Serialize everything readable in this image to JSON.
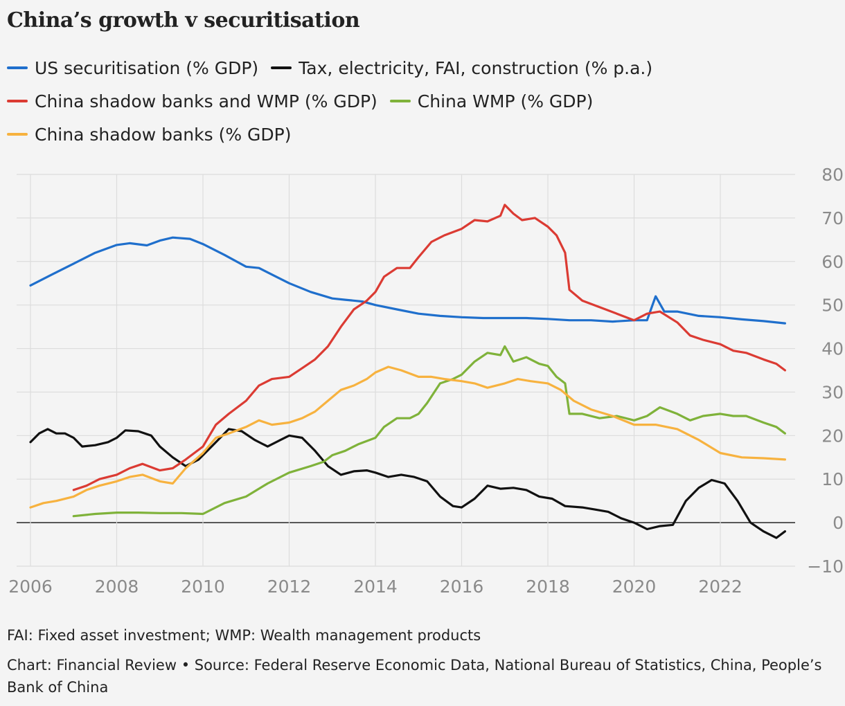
{
  "title": "China’s growth v securitisation",
  "legend": [
    {
      "label": "US securitisation (% GDP)",
      "color": "#1f6fcc"
    },
    {
      "label": "Tax, electricity, FAI, construction (% p.a.)",
      "color": "#111111"
    },
    {
      "label": "China shadow banks and WMP (% GDP)",
      "color": "#db3b33"
    },
    {
      "label": "China WMP (% GDP)",
      "color": "#7fb23a"
    },
    {
      "label": "China shadow banks (% GDP)",
      "color": "#f7b23f"
    }
  ],
  "footnote": "FAI: Fixed asset investment; WMP: Wealth management products",
  "source": "Chart: Financial Review • Source: Federal Reserve Economic Data, National Bureau of Statistics, China, People’s Bank of China",
  "chart_data": {
    "type": "line",
    "title": "China’s growth v securitisation",
    "xlabel": "",
    "ylabel": "",
    "xlim": [
      2006,
      2024
    ],
    "ylim": [
      -10,
      80
    ],
    "xticks": [
      "2006",
      "2008",
      "2010",
      "2012",
      "2014",
      "2016",
      "2018",
      "2020",
      "2022"
    ],
    "yticks": [
      "80",
      "70",
      "60",
      "50",
      "40",
      "30",
      "20",
      "10",
      "0",
      "−10"
    ],
    "grid": true,
    "legend_position": "top",
    "series": [
      {
        "name": "US securitisation (% GDP)",
        "color": "#1f6fcc",
        "x": [
          2006,
          2006.5,
          2007,
          2007.5,
          2008,
          2008.3,
          2008.7,
          2009,
          2009.3,
          2009.7,
          2010,
          2010.5,
          2011,
          2011.3,
          2011.7,
          2012,
          2012.5,
          2013,
          2013.3,
          2013.7,
          2014,
          2014.5,
          2015,
          2015.5,
          2016,
          2016.5,
          2017,
          2017.5,
          2018,
          2018.5,
          2019,
          2019.5,
          2020,
          2020.3,
          2020.5,
          2020.7,
          2021,
          2021.5,
          2022,
          2022.5,
          2023,
          2023.5
        ],
        "y": [
          54.5,
          57,
          59.5,
          62,
          63.8,
          64.2,
          63.7,
          64.8,
          65.5,
          65.2,
          64,
          61.5,
          58.8,
          58.5,
          56.5,
          55,
          53,
          51.5,
          51.2,
          50.8,
          50,
          49,
          48,
          47.5,
          47.2,
          47,
          47,
          47,
          46.8,
          46.5,
          46.5,
          46.2,
          46.5,
          46.5,
          52,
          48.5,
          48.5,
          47.5,
          47.2,
          46.7,
          46.3,
          45.8
        ]
      },
      {
        "name": "Tax, electricity, FAI, construction (% p.a.)",
        "color": "#111111",
        "x": [
          2006,
          2006.2,
          2006.4,
          2006.6,
          2006.8,
          2007,
          2007.2,
          2007.5,
          2007.8,
          2008,
          2008.2,
          2008.5,
          2008.8,
          2009,
          2009.3,
          2009.6,
          2009.9,
          2010.2,
          2010.6,
          2010.9,
          2011.2,
          2011.5,
          2011.8,
          2012,
          2012.3,
          2012.6,
          2012.9,
          2013.2,
          2013.5,
          2013.8,
          2014,
          2014.3,
          2014.6,
          2014.9,
          2015.2,
          2015.5,
          2015.8,
          2016,
          2016.3,
          2016.6,
          2016.9,
          2017.2,
          2017.5,
          2017.8,
          2018.1,
          2018.4,
          2018.8,
          2019.1,
          2019.4,
          2019.7,
          2020,
          2020.3,
          2020.6,
          2020.9,
          2021.2,
          2021.5,
          2021.8,
          2022.1,
          2022.4,
          2022.7,
          2023,
          2023.3,
          2023.5
        ],
        "y": [
          18.5,
          20.5,
          21.5,
          20.5,
          20.5,
          19.5,
          17.5,
          17.8,
          18.5,
          19.5,
          21.2,
          21,
          20,
          17.5,
          15,
          13,
          14.5,
          17.5,
          21.5,
          21,
          19,
          17.5,
          19,
          20,
          19.5,
          16.5,
          13,
          11,
          11.8,
          12,
          11.5,
          10.5,
          11,
          10.5,
          9.5,
          6,
          3.8,
          3.5,
          5.5,
          8.5,
          7.8,
          8,
          7.5,
          6,
          5.5,
          3.8,
          3.5,
          3,
          2.5,
          1,
          0,
          -1.5,
          -0.8,
          -0.5,
          5,
          8,
          9.8,
          9,
          5,
          0,
          -2,
          -3.5,
          -2
        ]
      },
      {
        "name": "China shadow banks and WMP (% GDP)",
        "color": "#db3b33",
        "x": [
          2007,
          2007.3,
          2007.6,
          2008,
          2008.3,
          2008.6,
          2009,
          2009.3,
          2009.6,
          2010,
          2010.3,
          2010.6,
          2011,
          2011.3,
          2011.6,
          2012,
          2012.3,
          2012.6,
          2012.9,
          2013.2,
          2013.5,
          2013.8,
          2014,
          2014.2,
          2014.5,
          2014.8,
          2015,
          2015.3,
          2015.6,
          2016,
          2016.3,
          2016.6,
          2016.9,
          2017,
          2017.2,
          2017.4,
          2017.7,
          2018,
          2018.2,
          2018.4,
          2018.5,
          2018.8,
          2019.2,
          2019.6,
          2020,
          2020.3,
          2020.6,
          2021,
          2021.3,
          2021.6,
          2022,
          2022.3,
          2022.6,
          2023,
          2023.3,
          2023.5
        ],
        "y": [
          7.5,
          8.5,
          10,
          11,
          12.5,
          13.5,
          12,
          12.5,
          14.5,
          17.5,
          22.5,
          25,
          28,
          31.5,
          33,
          33.5,
          35.5,
          37.5,
          40.5,
          45,
          49,
          51,
          53,
          56.5,
          58.5,
          58.5,
          61,
          64.5,
          66,
          67.5,
          69.5,
          69.2,
          70.5,
          73,
          71,
          69.5,
          70,
          68,
          66,
          62,
          53.5,
          51,
          49.5,
          48,
          46.5,
          48,
          48.5,
          46,
          43,
          42,
          41,
          39.5,
          39,
          37.5,
          36.5,
          35
        ]
      },
      {
        "name": "China WMP (% GDP)",
        "color": "#7fb23a",
        "x": [
          2007,
          2007.5,
          2008,
          2008.5,
          2009,
          2009.5,
          2010,
          2010.5,
          2011,
          2011.5,
          2012,
          2012.5,
          2012.8,
          2013,
          2013.3,
          2013.6,
          2014,
          2014.2,
          2014.5,
          2014.8,
          2015,
          2015.2,
          2015.5,
          2015.8,
          2016,
          2016.3,
          2016.6,
          2016.9,
          2017,
          2017.2,
          2017.5,
          2017.8,
          2018,
          2018.2,
          2018.4,
          2018.5,
          2018.8,
          2019.2,
          2019.6,
          2020,
          2020.3,
          2020.6,
          2021,
          2021.3,
          2021.6,
          2022,
          2022.3,
          2022.6,
          2023,
          2023.3,
          2023.5
        ],
        "y": [
          1.5,
          2,
          2.3,
          2.3,
          2.2,
          2.2,
          2,
          4.5,
          6,
          9,
          11.5,
          13,
          14,
          15.5,
          16.5,
          18,
          19.5,
          22,
          24,
          24,
          25,
          27.5,
          32,
          33,
          34,
          37,
          39,
          38.5,
          40.5,
          37,
          38,
          36.5,
          36,
          33.5,
          32,
          25,
          25,
          24,
          24.5,
          23.5,
          24.5,
          26.5,
          25,
          23.5,
          24.5,
          25,
          24.5,
          24.5,
          23,
          22,
          20.5
        ]
      },
      {
        "name": "China shadow banks (% GDP)",
        "color": "#f7b23f",
        "x": [
          2006,
          2006.3,
          2006.6,
          2007,
          2007.3,
          2007.6,
          2008,
          2008.3,
          2008.6,
          2009,
          2009.3,
          2009.6,
          2010,
          2010.3,
          2010.6,
          2011,
          2011.3,
          2011.6,
          2012,
          2012.3,
          2012.6,
          2012.9,
          2013.2,
          2013.5,
          2013.8,
          2014,
          2014.3,
          2014.6,
          2015,
          2015.3,
          2015.6,
          2016,
          2016.3,
          2016.6,
          2017,
          2017.3,
          2017.6,
          2018,
          2018.3,
          2018.6,
          2019,
          2019.5,
          2020,
          2020.5,
          2021,
          2021.5,
          2022,
          2022.5,
          2023,
          2023.5
        ],
        "y": [
          3.5,
          4.5,
          5,
          6,
          7.5,
          8.5,
          9.5,
          10.5,
          11,
          9.5,
          9,
          12.5,
          16,
          19.5,
          20.5,
          22,
          23.5,
          22.5,
          23,
          24,
          25.5,
          28,
          30.5,
          31.5,
          33,
          34.5,
          35.8,
          35,
          33.5,
          33.5,
          33,
          32.5,
          32,
          31,
          32,
          33,
          32.5,
          32,
          30.5,
          28,
          26,
          24.5,
          22.5,
          22.5,
          21.5,
          19,
          16,
          15,
          14.8,
          14.5
        ]
      }
    ]
  }
}
